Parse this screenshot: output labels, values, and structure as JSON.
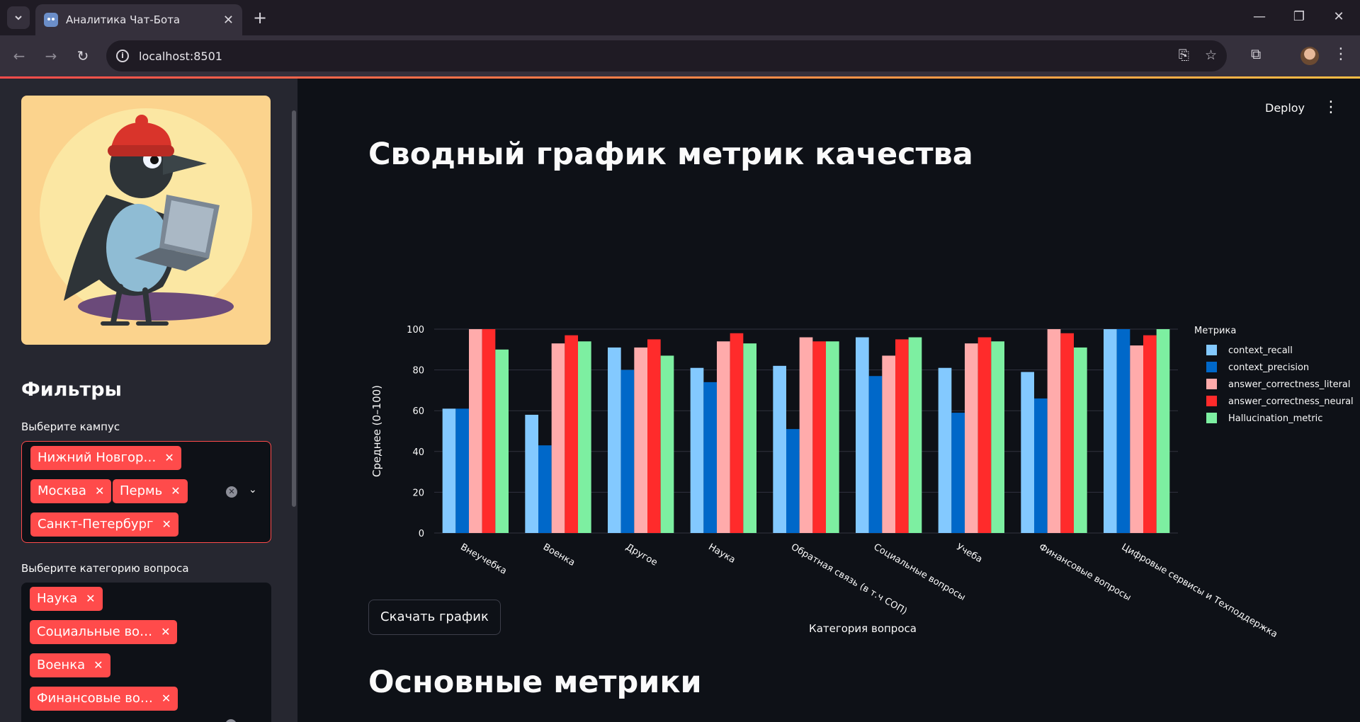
{
  "browser": {
    "tab_title": "Аналитика Чат-Бота",
    "url": "localhost:8501"
  },
  "sidebar": {
    "filters_title": "Фильтры",
    "campus": {
      "label": "Выберите кампус",
      "selected": [
        "Нижний Новгор…",
        "Москва",
        "Пермь",
        "Санкт-Петербург"
      ]
    },
    "category": {
      "label": "Выберите категорию вопроса",
      "selected": [
        "Наука",
        "Социальные во…",
        "Военка",
        "Финансовые во…"
      ]
    }
  },
  "header": {
    "deploy_label": "Deploy"
  },
  "main": {
    "chart_heading": "Сводный график метрик качества",
    "download_label": "Скачать график",
    "metrics_heading": "Основные метрики"
  },
  "chart_data": {
    "type": "bar",
    "title": "",
    "xlabel": "Категория вопроса",
    "ylabel": "Среднее (0–100)",
    "ylim": [
      0,
      100
    ],
    "yticks": [
      0,
      20,
      40,
      60,
      80,
      100
    ],
    "grid": true,
    "legend_title": "Метрика",
    "legend_position": "right",
    "categories": [
      "Внеучебка",
      "Военка",
      "Другое",
      "Наука",
      "Обратная связь (в т.ч СОП)",
      "Социальные вопросы",
      "Учеба",
      "Финансовые вопросы",
      "Цифровые сервисы и Техподдержка"
    ],
    "series": [
      {
        "name": "context_recall",
        "color": "#83c9ff",
        "values": [
          61,
          58,
          91,
          81,
          82,
          96,
          81,
          79,
          100
        ]
      },
      {
        "name": "context_precision",
        "color": "#0068c9",
        "values": [
          61,
          43,
          80,
          74,
          51,
          77,
          59,
          66,
          100
        ]
      },
      {
        "name": "answer_correctness_literal",
        "color": "#ffabab",
        "values": [
          100,
          93,
          91,
          94,
          96,
          87,
          93,
          100,
          92
        ]
      },
      {
        "name": "answer_correctness_neural",
        "color": "#ff2b2b",
        "values": [
          100,
          97,
          95,
          98,
          94,
          95,
          96,
          98,
          97
        ]
      },
      {
        "name": "Hallucination_metric",
        "color": "#7defa1",
        "values": [
          90,
          94,
          87,
          93,
          94,
          96,
          94,
          91,
          100
        ]
      }
    ]
  }
}
